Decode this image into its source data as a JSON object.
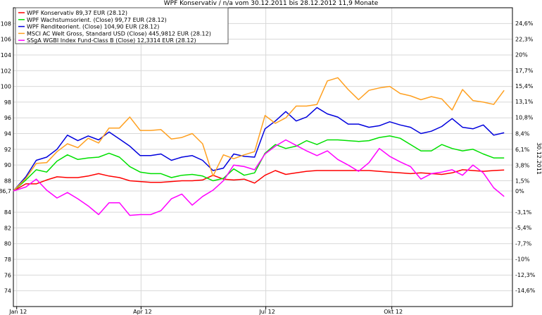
{
  "chart_data": {
    "type": "line",
    "title": "WPF Konservativ / n/a vom 30.12.2011 bis 28.12.2012 11,9 Monate",
    "side_label": "30.12.2011",
    "ylim": [
      72,
      110
    ],
    "y_ticks_left": [
      {
        "v": 74,
        "label": "74"
      },
      {
        "v": 76,
        "label": "76"
      },
      {
        "v": 78,
        "label": "78"
      },
      {
        "v": 80,
        "label": "80"
      },
      {
        "v": 82,
        "label": "82"
      },
      {
        "v": 84,
        "label": "84"
      },
      {
        "v": 86.7,
        "label": "86,7"
      },
      {
        "v": 88,
        "label": "88"
      },
      {
        "v": 90,
        "label": "90"
      },
      {
        "v": 92,
        "label": "92"
      },
      {
        "v": 94,
        "label": "94"
      },
      {
        "v": 96,
        "label": "96"
      },
      {
        "v": 98,
        "label": "98"
      },
      {
        "v": 100,
        "label": "100"
      },
      {
        "v": 102,
        "label": "102"
      },
      {
        "v": 104,
        "label": "104"
      },
      {
        "v": 106,
        "label": "106"
      },
      {
        "v": 108,
        "label": "108"
      }
    ],
    "y_ticks_right": [
      {
        "v": 108.04,
        "label": "24,6%"
      },
      {
        "v": 106.03,
        "label": "22,3%"
      },
      {
        "v": 104.04,
        "label": "20%"
      },
      {
        "v": 102.04,
        "label": "17,7%"
      },
      {
        "v": 100.05,
        "label": "15,4%"
      },
      {
        "v": 98.06,
        "label": "13,1%"
      },
      {
        "v": 96.06,
        "label": "10,8%"
      },
      {
        "v": 94.0,
        "label": "8,4%"
      },
      {
        "v": 91.99,
        "label": "6,1%"
      },
      {
        "v": 89.99,
        "label": "3,8%"
      },
      {
        "v": 88.0,
        "label": "1,5%"
      },
      {
        "v": 86.7,
        "label": "0%"
      },
      {
        "v": 84.01,
        "label": "-3,1%"
      },
      {
        "v": 82.02,
        "label": "-5,4%"
      },
      {
        "v": 80.02,
        "label": "-7,7%"
      },
      {
        "v": 78.03,
        "label": "-10%"
      },
      {
        "v": 76.03,
        "label": "-12,3%"
      },
      {
        "v": 74.04,
        "label": "-14,6%"
      }
    ],
    "x_ticks": [
      {
        "v": 0.08,
        "label": "Jan 12"
      },
      {
        "v": 3.07,
        "label": "Apr 12"
      },
      {
        "v": 6.07,
        "label": "Jul 12"
      },
      {
        "v": 9.1,
        "label": "Okt 12"
      }
    ],
    "xlim": [
      0,
      12
    ],
    "x": [
      0,
      0.3,
      0.55,
      0.8,
      1.05,
      1.3,
      1.55,
      1.8,
      2.05,
      2.3,
      2.55,
      2.8,
      3.05,
      3.3,
      3.55,
      3.8,
      4.05,
      4.3,
      4.55,
      4.8,
      5.05,
      5.3,
      5.55,
      5.8,
      6.05,
      6.3,
      6.55,
      6.8,
      7.05,
      7.3,
      7.55,
      7.8,
      8.05,
      8.3,
      8.55,
      8.8,
      9.05,
      9.3,
      9.55,
      9.8,
      10.05,
      10.3,
      10.55,
      10.8,
      11.05,
      11.3,
      11.55,
      11.8
    ],
    "series": [
      {
        "name": "WPF Konservativ 89,37 EUR (28.12)",
        "color": "#ff0000",
        "values": [
          86.7,
          87.6,
          87.6,
          88.1,
          88.5,
          88.4,
          88.4,
          88.6,
          88.9,
          88.6,
          88.4,
          88.0,
          87.9,
          87.8,
          87.8,
          87.9,
          88.0,
          88.0,
          88.1,
          88.7,
          88.2,
          88.1,
          88.2,
          87.7,
          88.7,
          89.3,
          88.8,
          89.0,
          89.2,
          89.3,
          89.3,
          89.3,
          89.3,
          89.3,
          89.3,
          89.2,
          89.1,
          89.0,
          88.9,
          89.0,
          88.9,
          88.8,
          89.0,
          89.4,
          89.3,
          89.2,
          89.3,
          89.37
        ]
      },
      {
        "name": "WPF Wachstumsorient. (Close) 99,77 EUR (28.12)",
        "color": "#00e000",
        "values": [
          86.7,
          88.1,
          89.4,
          89.1,
          90.5,
          91.3,
          90.7,
          90.9,
          91.0,
          91.5,
          91.0,
          89.8,
          89.1,
          88.9,
          88.9,
          88.4,
          88.7,
          88.8,
          88.6,
          88.0,
          88.3,
          89.5,
          88.7,
          89.0,
          91.5,
          92.6,
          92.1,
          92.4,
          93.1,
          92.6,
          93.2,
          93.2,
          93.1,
          93.0,
          93.1,
          93.5,
          93.7,
          93.4,
          92.6,
          91.8,
          91.8,
          92.6,
          92.1,
          91.8,
          92.0,
          91.4,
          90.9,
          90.9
        ]
      },
      {
        "name": "WPF Renditeorient. (Close) 104,90 EUR (28.12)",
        "color": "#0000dd",
        "values": [
          86.7,
          88.5,
          90.6,
          91.0,
          92.0,
          93.8,
          93.1,
          93.7,
          93.2,
          94.2,
          93.3,
          92.4,
          91.2,
          91.2,
          91.4,
          90.6,
          91.0,
          91.2,
          90.6,
          89.3,
          89.6,
          91.4,
          91.1,
          91.0,
          94.6,
          95.6,
          96.8,
          95.6,
          96.1,
          97.3,
          96.5,
          96.1,
          95.2,
          95.2,
          94.8,
          95.0,
          95.5,
          95.1,
          94.8,
          94.0,
          94.3,
          94.9,
          95.9,
          94.8,
          94.6,
          95.1,
          93.8,
          94.1
        ]
      },
      {
        "name": "MSCI AC Welt Gross, Standard USD (Close) 445,9812 EUR (28.12)",
        "color": "#ffa020",
        "values": [
          86.7,
          88.3,
          90.2,
          90.3,
          91.7,
          92.7,
          92.2,
          93.4,
          92.8,
          94.7,
          94.7,
          96.1,
          94.4,
          94.4,
          94.5,
          93.3,
          93.5,
          94.0,
          92.7,
          88.6,
          91.3,
          90.8,
          91.3,
          91.7,
          96.3,
          95.3,
          96.0,
          97.5,
          97.5,
          97.7,
          100.7,
          101.1,
          99.6,
          98.3,
          99.5,
          99.8,
          100.0,
          99.1,
          98.8,
          98.3,
          98.7,
          98.4,
          97.0,
          99.6,
          98.2,
          98.0,
          97.7,
          99.5
        ]
      },
      {
        "name": "SSgA WGBI Index Fund-Class B (Close) 12,3314 EUR (28.12)",
        "color": "#ff00ff",
        "values": [
          86.7,
          87.2,
          88.2,
          86.8,
          85.8,
          86.5,
          85.7,
          84.8,
          83.7,
          85.2,
          85.2,
          83.6,
          83.7,
          83.7,
          84.2,
          85.7,
          86.3,
          84.9,
          86.0,
          86.8,
          88.0,
          90.0,
          89.8,
          89.4,
          91.4,
          92.4,
          93.2,
          92.5,
          91.8,
          91.2,
          91.8,
          90.7,
          90.0,
          89.2,
          90.3,
          92.1,
          91.1,
          90.4,
          89.8,
          88.2,
          88.9,
          89.1,
          89.4,
          88.7,
          90.0,
          89.0,
          87.1,
          86.0
        ]
      }
    ]
  }
}
